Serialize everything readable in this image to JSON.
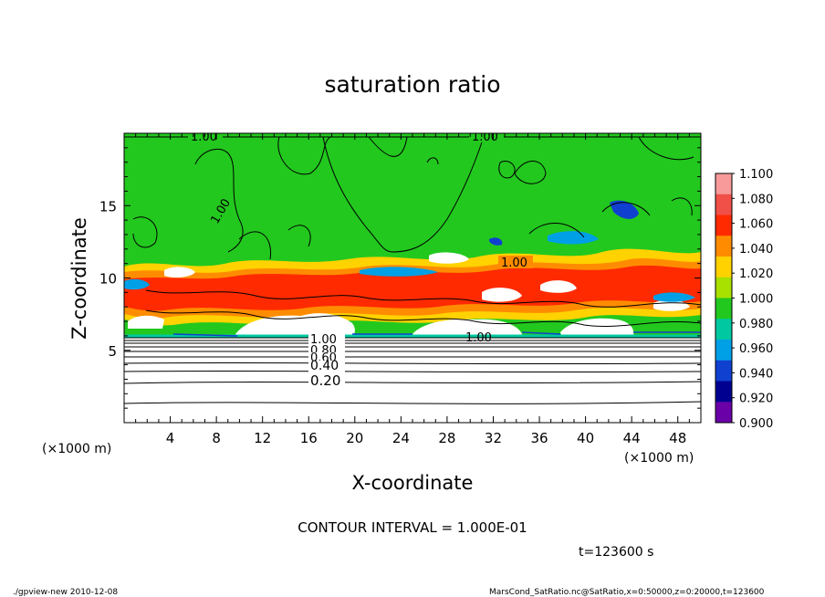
{
  "chart_data": {
    "type": "heatmap",
    "title": "saturation ratio",
    "xlabel": "X-coordinate",
    "ylabel": "Z-coordinate",
    "x_unit": "(×1000 m)",
    "z_unit": "(×1000 m)",
    "xlim": [
      0,
      50
    ],
    "ylim": [
      0,
      20
    ],
    "x_ticks": [
      4,
      8,
      12,
      16,
      20,
      24,
      28,
      32,
      36,
      40,
      44,
      48
    ],
    "y_ticks": [
      5,
      10,
      15
    ],
    "colorbar": {
      "levels": [
        "1.100",
        "1.080",
        "1.060",
        "1.040",
        "1.020",
        "1.000",
        "0.980",
        "0.960",
        "0.940",
        "0.920",
        "0.900"
      ],
      "colors": [
        "#f89a9a",
        "#f05048",
        "#ff2a00",
        "#ff8c00",
        "#ffd200",
        "#a8e000",
        "#22c81e",
        "#00c8a0",
        "#00a0e6",
        "#1040d0",
        "#000090",
        "#6a00a8"
      ]
    },
    "contour_labels": [
      "1.00",
      "1.00",
      "1.00",
      "1.00",
      "1.00",
      "1.00",
      "0.80",
      "0.60",
      "0.40",
      "0.20"
    ],
    "contour_interval_text": "CONTOUR INTERVAL = 1.000E-01",
    "time_text": "t=123600  s",
    "footer_left": "./gpview-new   2010-12-08",
    "footer_right": "MarsCond_SatRatio.nc@SatRatio,x=0:50000,z=0:20000,t=123600"
  }
}
